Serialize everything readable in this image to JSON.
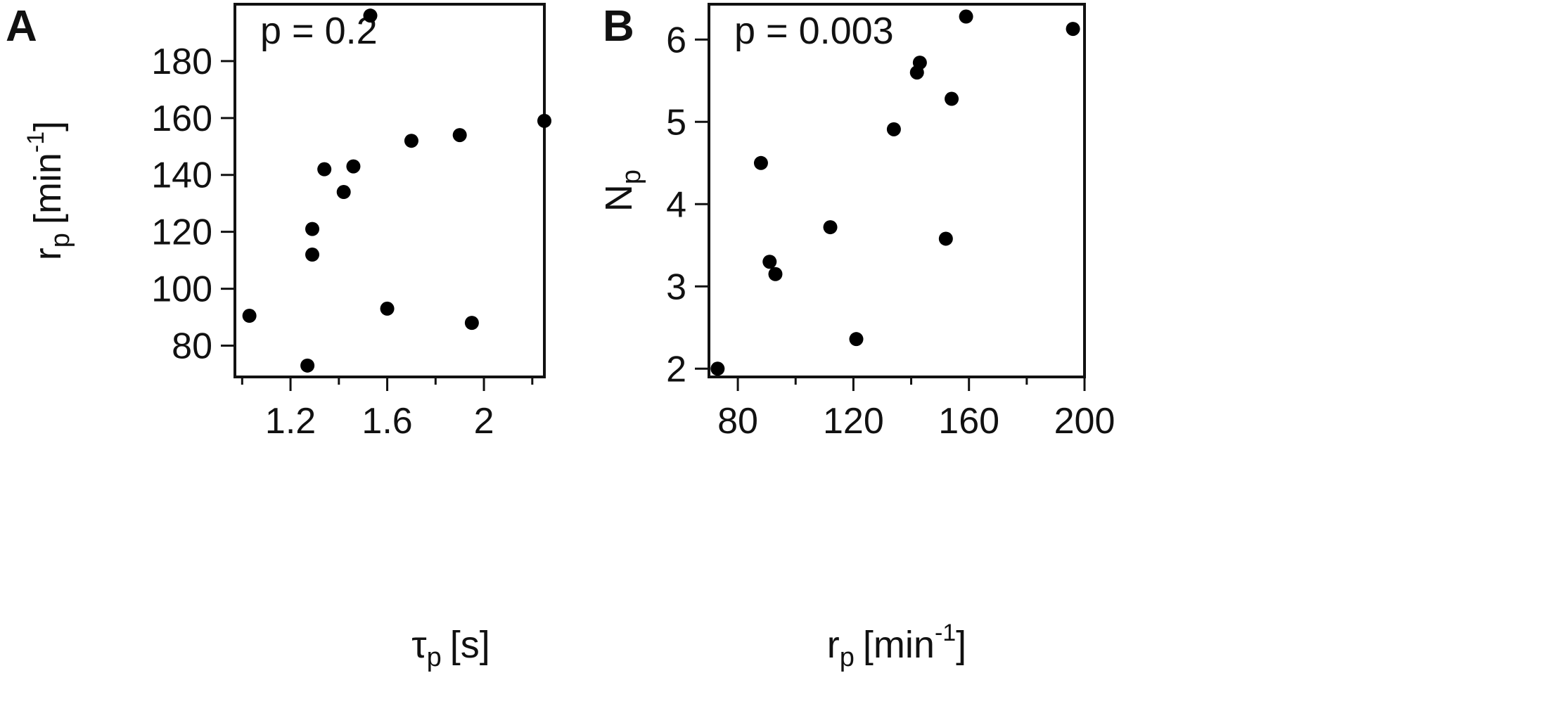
{
  "chart_data": [
    {
      "panel": "A",
      "type": "scatter",
      "annotation": "p = 0.2",
      "xlabel": {
        "main": "τ",
        "sub": "p",
        "unit": "[s]"
      },
      "ylabel": {
        "main": "r",
        "sub": "p",
        "unit_open": "[min",
        "sup": "-1",
        "unit_close": "]"
      },
      "xlim": [
        0.97,
        2.25
      ],
      "ylim": [
        69,
        200
      ],
      "xticks": [
        1.2,
        1.6,
        2.0
      ],
      "xticks_minor": [
        1.0,
        1.4,
        1.8,
        2.2
      ],
      "yticks": [
        80,
        100,
        120,
        140,
        160,
        180
      ],
      "x": [
        1.03,
        1.27,
        1.29,
        1.29,
        1.34,
        1.42,
        1.46,
        1.53,
        1.6,
        1.7,
        1.9,
        1.95,
        2.25
      ],
      "y": [
        90.5,
        73,
        121,
        112,
        142,
        134,
        143,
        196,
        93,
        152,
        154,
        88,
        159
      ],
      "marker_color": "#000000",
      "grid": false
    },
    {
      "panel": "B",
      "type": "scatter",
      "annotation": "p = 0.003",
      "xlabel": {
        "main": "r",
        "sub": "p",
        "unit_open": "[min",
        "sup": "-1",
        "unit_close": "]"
      },
      "ylabel": {
        "main": "N",
        "sub": "p"
      },
      "xlim": [
        70,
        200
      ],
      "ylim": [
        1.9,
        6.43
      ],
      "xticks": [
        80,
        120,
        160,
        200
      ],
      "xticks_minor": [
        100,
        140,
        180
      ],
      "yticks": [
        2,
        3,
        4,
        5,
        6
      ],
      "x": [
        73,
        88,
        91,
        93,
        112,
        121,
        134,
        142,
        143,
        152,
        154,
        159,
        196
      ],
      "y": [
        2.0,
        4.5,
        3.3,
        3.15,
        3.72,
        2.36,
        4.91,
        5.6,
        5.72,
        3.58,
        5.28,
        6.28,
        6.13
      ],
      "marker_color": "#000000",
      "grid": false
    }
  ]
}
